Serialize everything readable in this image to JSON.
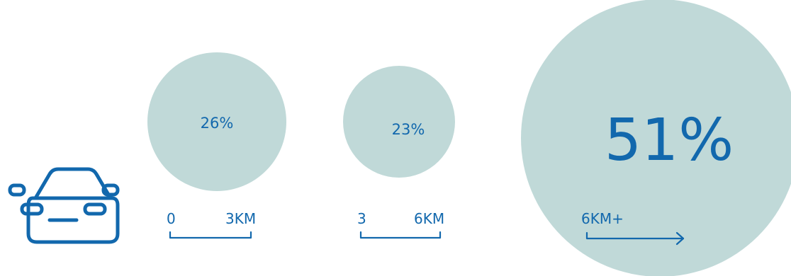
{
  "colors": {
    "bubble": "#c0d9d8",
    "accent": "#1268ad",
    "background": "#ffffff"
  },
  "icon": "car-icon",
  "chart_data": {
    "type": "bubble",
    "series": [
      {
        "value": 26,
        "label": "26%",
        "range_start": "0",
        "range_end": "3KM"
      },
      {
        "value": 23,
        "label": "23%",
        "range_start": "3",
        "range_end": "6KM"
      },
      {
        "value": 51,
        "label": "51%",
        "range_start": "6KM+",
        "range_end": ""
      }
    ]
  }
}
